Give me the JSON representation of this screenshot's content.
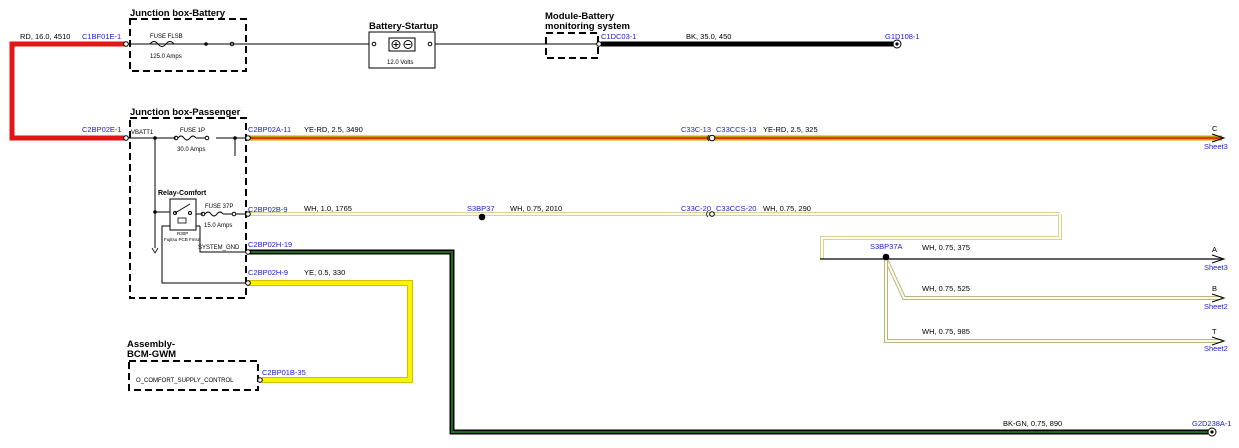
{
  "components": {
    "jb_battery": "Junction box-Battery",
    "battery_startup": "Battery-Startup",
    "bms_line1": "Module-Battery",
    "bms_line2": "monitoring system",
    "jb_passenger": "Junction box-Passenger",
    "relay_comfort": "Relay-Comfort",
    "bcm_line1": "Assembly-",
    "bcm_line2": "BCM-GWM",
    "bcm_signal": "O_COMFORT_SUPPLY_CONTROL"
  },
  "fuses": {
    "flsb_name": "FUSE FLSB",
    "flsb_rating": "125.0 Amps",
    "f1p_name": "FUSE 1P",
    "f1p_rating": "30.0 Amps",
    "f37p_name": "FUSE 37P",
    "f37p_rating": "15.0 Amps"
  },
  "battery_voltage": "12.0 Volts",
  "relay_sub1": "R30P",
  "relay_sub2": "Fujitsu PCB Fmsa",
  "pins": {
    "vbatt1": "VBATT1",
    "system_gnd": "SYSTEM_GND"
  },
  "connectors": {
    "c1bf01e": "C1BF01E-1",
    "c1dc03": "C1DC03-1",
    "g1d108": "G1D108-1",
    "c2bp02e": "C2BP02E-1",
    "c2bp02a": "C2BP02A-11",
    "c33c13": "C33C-13",
    "c33ccs13": "C33CCS-13",
    "c2bp02b": "C2BP02B-9",
    "s3bp37": "S3BP37",
    "c33c20": "C33C-20",
    "c33ccs20": "C33CCS-20",
    "c2bp02h19": "C2BP02H-19",
    "c2bp02h9": "C2BP02H-9",
    "s3bp37a": "S3BP37A",
    "c2bp01b": "C2BP01B-35",
    "g2d238a": "G2D238A-1"
  },
  "wires": {
    "w_rd": "RD,  16.0,  4510",
    "w_bk": "BK,  35.0,  450",
    "w_yerd1": "YE-RD,  2.5,  3490",
    "w_yerd2": "YE-RD,  2.5,  325",
    "w_wh1": "WH,  1.0,  1765",
    "w_wh2": "WH,  0.75,  2010",
    "w_wh3": "WH,  0.75,  290",
    "w_wh4": "WH,  0.75,  375",
    "w_wh5": "WH,  0.75,  525",
    "w_wh6": "WH,  0.75,  985",
    "w_ye": "YE,  0.5,  330",
    "w_bkgn": "BK-GN,  0.75,  890"
  },
  "offsheet": {
    "c_letter": "C",
    "c_sheet": "Sheet3",
    "a_letter": "A",
    "a_sheet": "Sheet3",
    "b_letter": "B",
    "b_sheet": "Sheet2",
    "t_letter": "T",
    "t_sheet": "Sheet2"
  },
  "colors": {
    "red": "#e31515",
    "black": "#000000",
    "yellow": "#f5f500",
    "ye_rd_stripe": "#e31515",
    "white_wire": "#fdfde6",
    "green": "#1a6b1a",
    "connector_text": "#1a1adb"
  }
}
